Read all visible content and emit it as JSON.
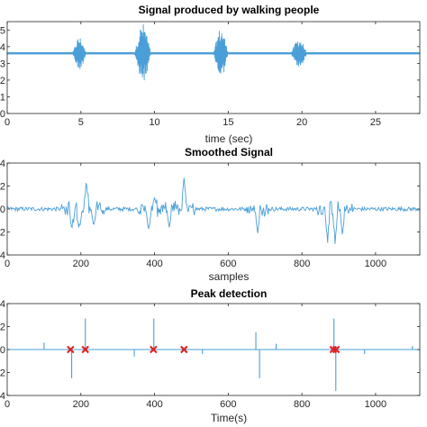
{
  "chart_data": [
    {
      "type": "line",
      "title": "Signal produced by walking people",
      "xlabel": "time (sec)",
      "ylabel": "",
      "xlim": [
        0,
        28
      ],
      "ylim": [
        0,
        5.5
      ],
      "xticks": [
        0,
        5,
        10,
        15,
        20,
        25
      ],
      "xtick_labels": [
        "0",
        "5",
        "10",
        "15",
        "20",
        "25"
      ],
      "yticks": [
        0,
        1,
        2,
        3,
        4,
        5
      ],
      "ytick_labels": [
        "0",
        "1",
        "2",
        "3",
        "4",
        "5"
      ],
      "baseline": 3.6,
      "bursts": [
        {
          "center": 4.9,
          "width": 1.0,
          "amplitude": 1.0
        },
        {
          "center": 9.2,
          "width": 1.2,
          "amplitude": 1.8
        },
        {
          "center": 14.5,
          "width": 1.1,
          "amplitude": 1.5
        },
        {
          "center": 19.8,
          "width": 1.2,
          "amplitude": 0.9
        }
      ],
      "color": "#4a9fd8",
      "grid": false
    },
    {
      "type": "line",
      "title": "Smoothed Signal",
      "xlabel": "samples",
      "ylabel": "",
      "xlim": [
        0,
        1120
      ],
      "ylim": [
        -4,
        4
      ],
      "xticks": [
        0,
        200,
        400,
        600,
        800,
        1000
      ],
      "xtick_labels": [
        "0",
        "200",
        "400",
        "600",
        "800",
        "1000"
      ],
      "yticks": [
        -4,
        -2,
        0,
        2,
        4
      ],
      "ytick_labels": [
        "-4",
        "-2",
        "0",
        "2",
        "4"
      ],
      "baseline": 0,
      "events": [
        {
          "x": 175,
          "y": -2.0
        },
        {
          "x": 195,
          "y": -1.6
        },
        {
          "x": 215,
          "y": 2.7
        },
        {
          "x": 235,
          "y": -1.5
        },
        {
          "x": 385,
          "y": -2.0
        },
        {
          "x": 400,
          "y": 1.0
        },
        {
          "x": 440,
          "y": -1.6
        },
        {
          "x": 480,
          "y": 2.7
        },
        {
          "x": 680,
          "y": -2.1
        },
        {
          "x": 870,
          "y": -2.5
        },
        {
          "x": 890,
          "y": -3.0
        },
        {
          "x": 910,
          "y": -2.2
        }
      ],
      "color": "#4a9fd8",
      "grid": false
    },
    {
      "type": "line",
      "title": "Peak detection",
      "xlabel": "Time(s)",
      "ylabel": "",
      "xlim": [
        0,
        1120
      ],
      "ylim": [
        -4,
        4
      ],
      "xticks": [
        0,
        200,
        400,
        600,
        800,
        1000
      ],
      "xtick_labels": [
        "0",
        "200",
        "400",
        "600",
        "800",
        "1000"
      ],
      "yticks": [
        -4,
        -2,
        0,
        2,
        4
      ],
      "ytick_labels": [
        "-4",
        "-2",
        "0",
        "2",
        "4"
      ],
      "spikes": [
        {
          "x": 100,
          "y": 0.6
        },
        {
          "x": 175,
          "y": -2.5
        },
        {
          "x": 212,
          "y": 2.7
        },
        {
          "x": 345,
          "y": -0.6
        },
        {
          "x": 398,
          "y": 2.7
        },
        {
          "x": 530,
          "y": -0.4
        },
        {
          "x": 675,
          "y": 1.5
        },
        {
          "x": 685,
          "y": -2.5
        },
        {
          "x": 730,
          "y": 0.5
        },
        {
          "x": 887,
          "y": 2.7
        },
        {
          "x": 892,
          "y": -3.6
        },
        {
          "x": 970,
          "y": -0.4
        },
        {
          "x": 1100,
          "y": 0.3
        }
      ],
      "peaks": [
        {
          "x": 172,
          "y": 0
        },
        {
          "x": 212,
          "y": 0
        },
        {
          "x": 397,
          "y": 0
        },
        {
          "x": 480,
          "y": 0
        },
        {
          "x": 885,
          "y": 0
        },
        {
          "x": 893,
          "y": 0
        }
      ],
      "color": "#4a9fd8",
      "marker_color": "#e02020",
      "grid": false
    }
  ]
}
